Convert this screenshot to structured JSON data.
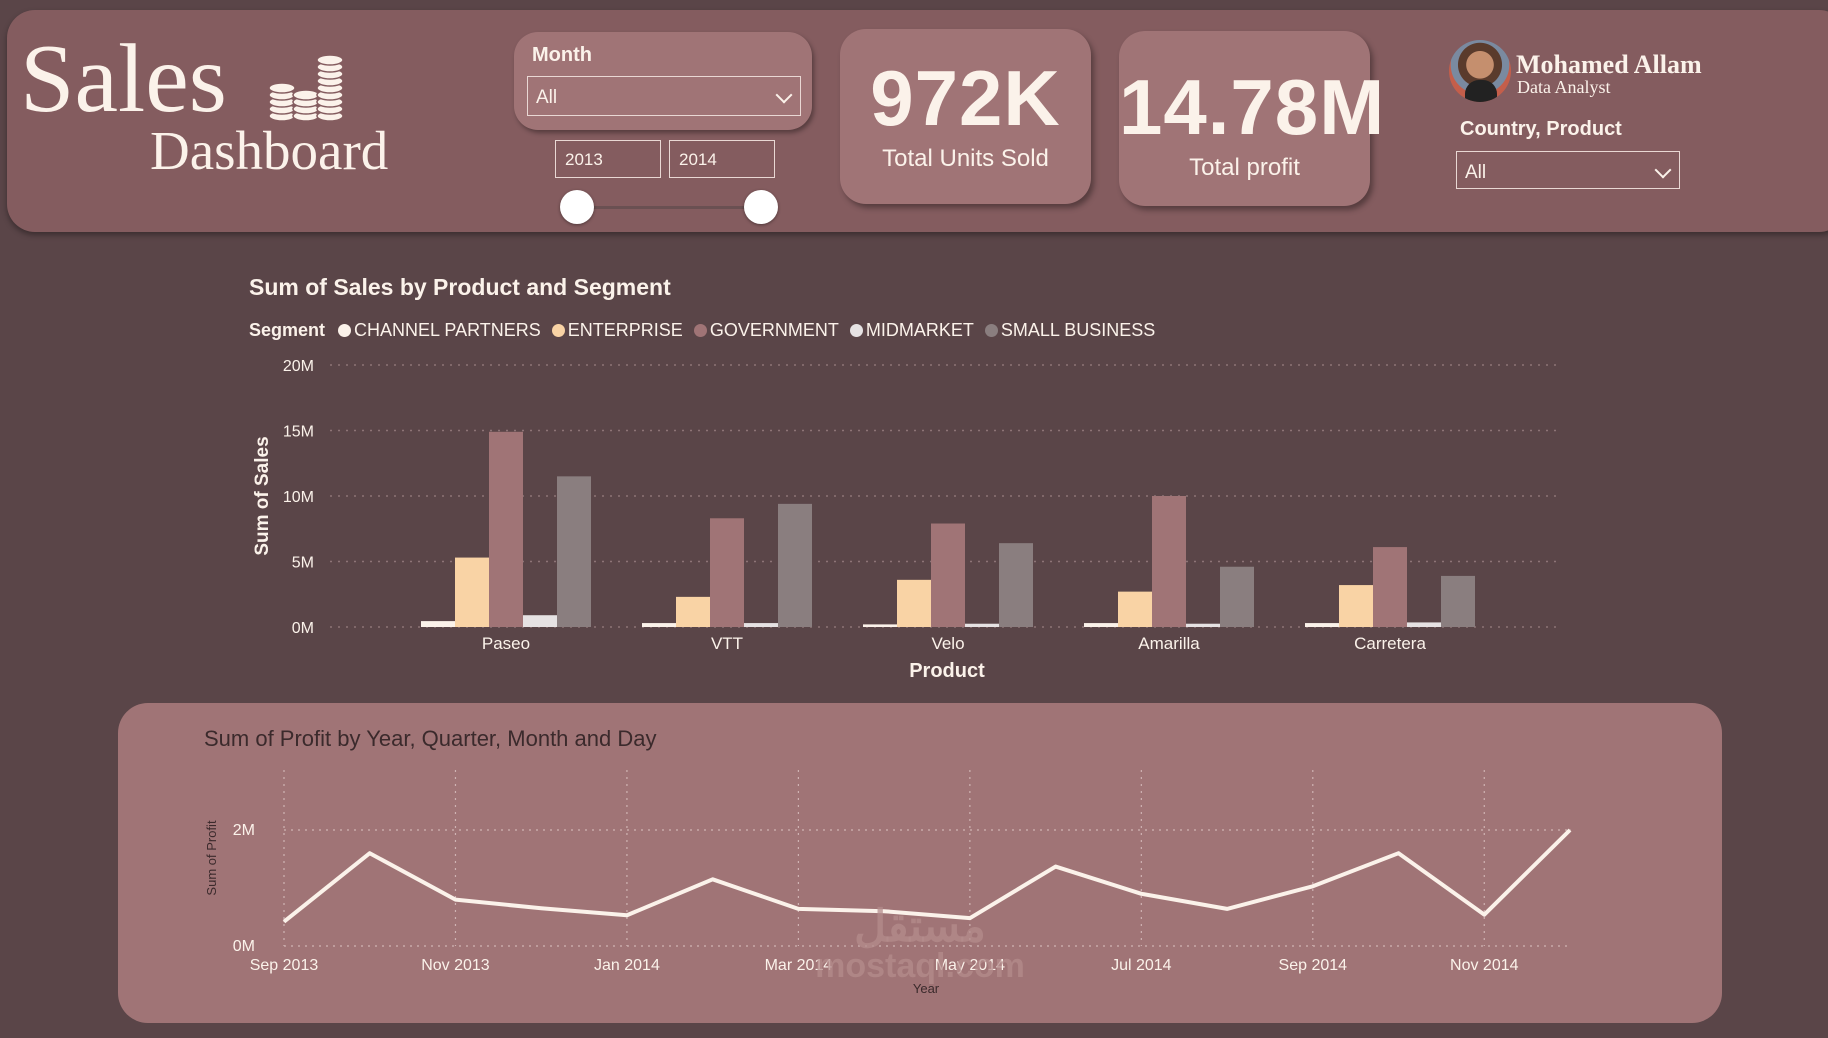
{
  "header": {
    "title_line1": "Sales",
    "title_line2": "Dashboard",
    "logo_icon": "coin-stack-icon",
    "month_slicer": {
      "label": "Month",
      "selected": "All"
    },
    "year_range": {
      "from": "2013",
      "to": "2014"
    },
    "kpis": [
      {
        "value": "972K",
        "label": "Total Units Sold"
      },
      {
        "value": "14.78M",
        "label": "Total profit"
      }
    ],
    "user": {
      "name": "Mohamed Allam",
      "role": "Data Analyst"
    },
    "country_product_slicer": {
      "label": "Country, Product",
      "selected": "All"
    }
  },
  "colors": {
    "background": "#5a4548",
    "header": "#845c5f",
    "card": "#a07476",
    "text": "#fbf2ea",
    "channel_partners": "#fbf2ea",
    "enterprise": "#f9d3a5",
    "government": "#a07476",
    "midmarket": "#e6e2e3",
    "small_business": "#8a7e7f"
  },
  "chart_data": [
    {
      "type": "bar",
      "title": "Sum of Sales by Product and Segment",
      "legend_title": "Segment",
      "legend_position": "top-left",
      "xlabel": "Product",
      "ylabel": "Sum of Sales",
      "ylim": [
        0,
        20000000
      ],
      "yticks": [
        "0M",
        "5M",
        "10M",
        "15M",
        "20M"
      ],
      "grid": true,
      "categories": [
        "Paseo",
        "VTT",
        "Velo",
        "Amarilla",
        "Carretera"
      ],
      "series": [
        {
          "name": "CHANNEL PARTNERS",
          "color_key": "channel_partners",
          "values": [
            450000,
            300000,
            200000,
            300000,
            300000
          ]
        },
        {
          "name": "ENTERPRISE",
          "color_key": "enterprise",
          "values": [
            5300000,
            2300000,
            3600000,
            2700000,
            3200000
          ]
        },
        {
          "name": "GOVERNMENT",
          "color_key": "government",
          "values": [
            14900000,
            8300000,
            7900000,
            10000000,
            6100000
          ]
        },
        {
          "name": "MIDMARKET",
          "color_key": "midmarket",
          "values": [
            900000,
            300000,
            250000,
            250000,
            350000
          ]
        },
        {
          "name": "SMALL BUSINESS",
          "color_key": "small_business",
          "values": [
            11500000,
            9400000,
            6400000,
            4600000,
            3900000
          ]
        }
      ]
    },
    {
      "type": "line",
      "title": "Sum of Profit by Year, Quarter, Month and Day",
      "xlabel": "Year",
      "ylabel": "Sum of Profit",
      "ylim": [
        0,
        2000000
      ],
      "yticks": [
        "0M",
        "2M"
      ],
      "grid": true,
      "x": [
        "Sep 2013",
        "Oct 2013",
        "Nov 2013",
        "Dec 2013",
        "Jan 2014",
        "Feb 2014",
        "Mar 2014",
        "Apr 2014",
        "May 2014",
        "Jun 2014",
        "Jul 2014",
        "Aug 2014",
        "Sep 2014",
        "Oct 2014",
        "Nov 2014",
        "Dec 2014"
      ],
      "xtick_labels": [
        "Sep 2013",
        "Nov 2013",
        "Jan 2014",
        "Mar 2014",
        "May 2014",
        "Jul 2014",
        "Sep 2014",
        "Nov 2014"
      ],
      "series": [
        {
          "values": [
            420000,
            1600000,
            800000,
            650000,
            530000,
            1150000,
            640000,
            600000,
            480000,
            1370000,
            900000,
            640000,
            1030000,
            1600000,
            540000,
            2000000
          ]
        }
      ]
    }
  ],
  "watermark": {
    "arabic": "مستقل",
    "latin": "mostaql.com"
  }
}
